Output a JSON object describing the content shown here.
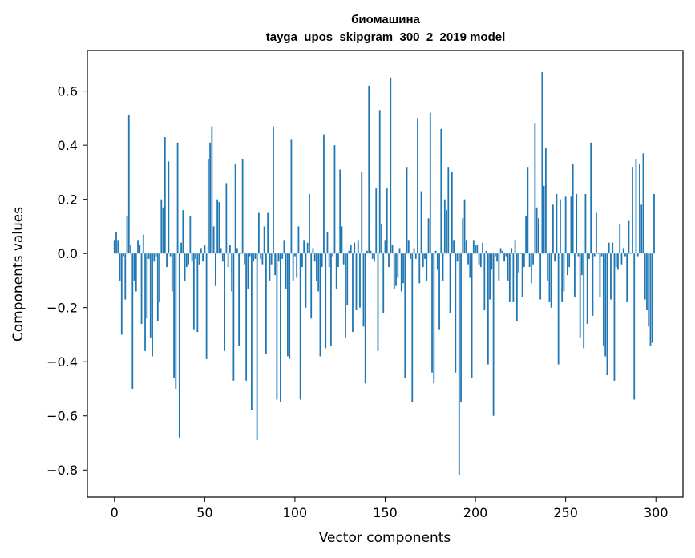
{
  "chart_data": {
    "type": "bar",
    "title": "биомашина",
    "subtitle": "tayga_upos_skipgram_300_2_2019 model",
    "xlabel": "Vector components",
    "ylabel": "Components values",
    "xlim": [
      -15,
      315
    ],
    "ylim": [
      -0.9,
      0.75
    ],
    "xticks": [
      0,
      50,
      100,
      150,
      200,
      250,
      300
    ],
    "xtick_labels": [
      "0",
      "50",
      "100",
      "150",
      "200",
      "250",
      "300"
    ],
    "yticks": [
      -0.8,
      -0.6,
      -0.4,
      -0.2,
      0.0,
      0.2,
      0.4,
      0.6
    ],
    "ytick_labels": [
      "−0.8",
      "−0.6",
      "−0.4",
      "−0.2",
      "0.0",
      "0.2",
      "0.4",
      "0.6"
    ],
    "bar_color": "#1f77b4",
    "grid": false,
    "values": [
      0.05,
      0.08,
      0.05,
      -0.1,
      -0.3,
      -0.01,
      -0.17,
      0.14,
      0.51,
      0.03,
      -0.5,
      -0.1,
      -0.14,
      0.05,
      0.03,
      -0.26,
      0.07,
      -0.36,
      -0.24,
      -0.02,
      -0.31,
      -0.38,
      -0.03,
      -0.01,
      -0.25,
      -0.18,
      0.2,
      0.17,
      0.43,
      -0.05,
      0.34,
      -0.01,
      -0.14,
      -0.46,
      -0.5,
      0.41,
      -0.68,
      0.04,
      0.16,
      -0.1,
      -0.05,
      -0.04,
      0.14,
      -0.03,
      -0.28,
      -0.02,
      -0.29,
      -0.04,
      0.02,
      -0.03,
      0.03,
      -0.39,
      0.35,
      0.41,
      0.47,
      0.1,
      -0.12,
      0.2,
      0.19,
      0.02,
      -0.03,
      -0.36,
      0.26,
      -0.05,
      0.03,
      -0.14,
      -0.47,
      0.33,
      0.02,
      -0.34,
      0.0,
      0.35,
      -0.04,
      -0.47,
      -0.13,
      -0.01,
      -0.58,
      -0.03,
      -0.02,
      -0.69,
      0.15,
      -0.02,
      -0.04,
      0.1,
      -0.37,
      0.15,
      -0.1,
      -0.04,
      0.47,
      -0.08,
      -0.54,
      -0.03,
      -0.55,
      -0.02,
      0.05,
      -0.13,
      -0.38,
      -0.39,
      0.42,
      -0.1,
      -0.01,
      -0.09,
      0.1,
      -0.54,
      -0.05,
      0.05,
      -0.2,
      0.04,
      0.22,
      -0.24,
      0.02,
      -0.03,
      -0.1,
      -0.14,
      -0.38,
      -0.05,
      0.44,
      -0.35,
      0.08,
      -0.05,
      -0.34,
      -0.01,
      0.4,
      -0.13,
      -0.05,
      0.31,
      0.1,
      -0.04,
      -0.31,
      -0.19,
      0.01,
      0.03,
      -0.29,
      0.04,
      -0.21,
      0.05,
      -0.2,
      0.3,
      -0.27,
      -0.48,
      0.01,
      0.62,
      0.01,
      -0.02,
      -0.03,
      0.24,
      -0.36,
      0.53,
      0.11,
      -0.22,
      0.05,
      0.24,
      -0.05,
      0.65,
      0.03,
      -0.13,
      -0.12,
      -0.09,
      0.02,
      -0.14,
      -0.11,
      -0.46,
      0.32,
      0.05,
      -0.02,
      -0.55,
      0.02,
      -0.02,
      0.5,
      -0.11,
      0.23,
      -0.05,
      -0.02,
      -0.1,
      0.13,
      0.52,
      -0.44,
      -0.48,
      0.01,
      -0.06,
      -0.28,
      0.46,
      -0.1,
      0.2,
      0.16,
      0.32,
      -0.22,
      0.3,
      0.05,
      -0.44,
      -0.03,
      -0.82,
      -0.55,
      0.13,
      0.2,
      0.05,
      -0.04,
      -0.09,
      -0.46,
      0.05,
      0.03,
      0.03,
      -0.04,
      -0.05,
      0.04,
      -0.21,
      0.01,
      -0.41,
      -0.17,
      -0.06,
      -0.6,
      -0.01,
      -0.03,
      -0.1,
      0.02,
      0.01,
      -0.03,
      -0.01,
      -0.1,
      -0.18,
      0.02,
      -0.18,
      0.05,
      -0.25,
      -0.07,
      0.0,
      -0.16,
      -0.05,
      0.14,
      0.32,
      -0.05,
      -0.11,
      -0.04,
      0.48,
      0.17,
      0.13,
      -0.17,
      0.67,
      0.25,
      0.39,
      -0.1,
      -0.18,
      -0.2,
      0.18,
      -0.03,
      0.22,
      -0.41,
      0.2,
      -0.18,
      -0.14,
      0.21,
      -0.08,
      -0.05,
      0.21,
      0.33,
      -0.16,
      0.22,
      -0.01,
      -0.31,
      -0.08,
      -0.35,
      0.22,
      -0.26,
      -0.02,
      0.41,
      -0.23,
      -0.01,
      0.15,
      0.0,
      -0.16,
      -0.01,
      -0.34,
      -0.38,
      -0.45,
      0.04,
      -0.17,
      0.04,
      -0.47,
      -0.05,
      -0.06,
      0.11,
      -0.04,
      0.02,
      -0.01,
      -0.18,
      0.12,
      0.0,
      0.32,
      -0.54,
      0.35,
      -0.01,
      0.33,
      0.18,
      0.37,
      -0.17,
      -0.21,
      -0.27,
      -0.34,
      -0.33,
      0.22
    ]
  }
}
